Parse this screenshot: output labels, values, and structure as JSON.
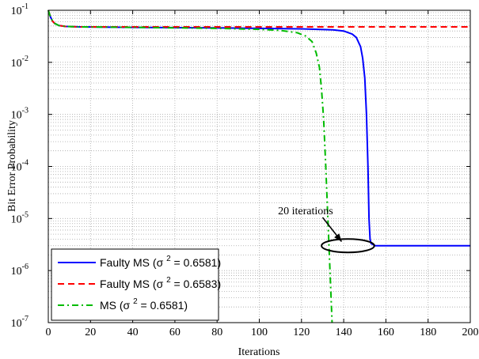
{
  "chart_data": {
    "type": "line",
    "xlabel": "Iterations",
    "ylabel": "Bit Error Probability",
    "xlim": [
      0,
      200
    ],
    "ylim": [
      1e-07,
      0.1
    ],
    "yscale": "log",
    "grid": "major and minor (dotted)",
    "legend_position": "bottom-left",
    "x_ticks": [
      0,
      20,
      40,
      60,
      80,
      100,
      120,
      140,
      160,
      180,
      200
    ],
    "y_ticks": [
      {
        "value": 1e-07,
        "mantissa": "10",
        "exp": "-7"
      },
      {
        "value": 1e-06,
        "mantissa": "10",
        "exp": "-6"
      },
      {
        "value": 1e-05,
        "mantissa": "10",
        "exp": "-5"
      },
      {
        "value": 0.0001,
        "mantissa": "10",
        "exp": "-4"
      },
      {
        "value": 0.001,
        "mantissa": "10",
        "exp": "-3"
      },
      {
        "value": 0.01,
        "mantissa": "10",
        "exp": "-2"
      },
      {
        "value": 0.1,
        "mantissa": "10",
        "exp": "-1"
      }
    ],
    "series": [
      {
        "name": "Faulty MS (σ 2 = 0.6581)",
        "legend": {
          "prefix": "Faulty MS (",
          "sigma": "σ",
          "sup": "2",
          "suffix": " = 0.6581)"
        },
        "color": "#0000ff",
        "dash": "solid",
        "points": [
          [
            0,
            0.1
          ],
          [
            1,
            0.075
          ],
          [
            2,
            0.062
          ],
          [
            3,
            0.056
          ],
          [
            5,
            0.051
          ],
          [
            8,
            0.049
          ],
          [
            15,
            0.048
          ],
          [
            40,
            0.047
          ],
          [
            80,
            0.046
          ],
          [
            100,
            0.045
          ],
          [
            120,
            0.044
          ],
          [
            135,
            0.042
          ],
          [
            140,
            0.04
          ],
          [
            144,
            0.035
          ],
          [
            146,
            0.03
          ],
          [
            148,
            0.02
          ],
          [
            149,
            0.012
          ],
          [
            150,
            0.005
          ],
          [
            150.8,
            0.001
          ],
          [
            151.5,
            0.0001
          ],
          [
            152,
            1e-05
          ],
          [
            152.5,
            4e-06
          ],
          [
            153,
            3.3e-06
          ],
          [
            155,
            3e-06
          ],
          [
            160,
            3e-06
          ],
          [
            200,
            3e-06
          ]
        ]
      },
      {
        "name": "Faulty MS (σ 2 = 0.6583)",
        "legend": {
          "prefix": "Faulty MS (",
          "sigma": "σ",
          "sup": "2",
          "suffix": " = 0.6583)"
        },
        "color": "#ff0000",
        "dash": "8,5",
        "points": [
          [
            0,
            0.1
          ],
          [
            1,
            0.075
          ],
          [
            2,
            0.062
          ],
          [
            3,
            0.056
          ],
          [
            5,
            0.051
          ],
          [
            8,
            0.049
          ],
          [
            15,
            0.048
          ],
          [
            40,
            0.048
          ],
          [
            80,
            0.048
          ],
          [
            120,
            0.048
          ],
          [
            160,
            0.048
          ],
          [
            200,
            0.048
          ]
        ]
      },
      {
        "name": "MS (σ 2 = 0.6581)",
        "legend": {
          "prefix": "MS (",
          "sigma": "σ",
          "sup": "2",
          "suffix": " = 0.6581)"
        },
        "color": "#00bb00",
        "dash": "8,4,2,4",
        "points": [
          [
            0,
            0.1
          ],
          [
            1,
            0.075
          ],
          [
            2,
            0.062
          ],
          [
            3,
            0.056
          ],
          [
            5,
            0.051
          ],
          [
            8,
            0.049
          ],
          [
            15,
            0.048
          ],
          [
            40,
            0.047
          ],
          [
            80,
            0.045
          ],
          [
            100,
            0.043
          ],
          [
            110,
            0.041
          ],
          [
            118,
            0.037
          ],
          [
            122,
            0.032
          ],
          [
            125,
            0.025
          ],
          [
            127,
            0.015
          ],
          [
            128.5,
            0.008
          ],
          [
            129.5,
            0.003
          ],
          [
            130.5,
            0.0008
          ],
          [
            131.5,
            0.0001
          ],
          [
            132.5,
            1e-05
          ],
          [
            133.5,
            1e-06
          ],
          [
            134.5,
            1e-07
          ]
        ]
      }
    ],
    "annotation": {
      "text": "20 iterations",
      "text_at": [
        135,
        1.2e-05
      ],
      "ellipse_center": [
        142,
        3e-06
      ],
      "ellipse_span_x": [
        132,
        157
      ],
      "arrow_from": [
        130,
        1.05e-05
      ],
      "arrow_to": [
        139,
        3.6e-06
      ]
    }
  }
}
